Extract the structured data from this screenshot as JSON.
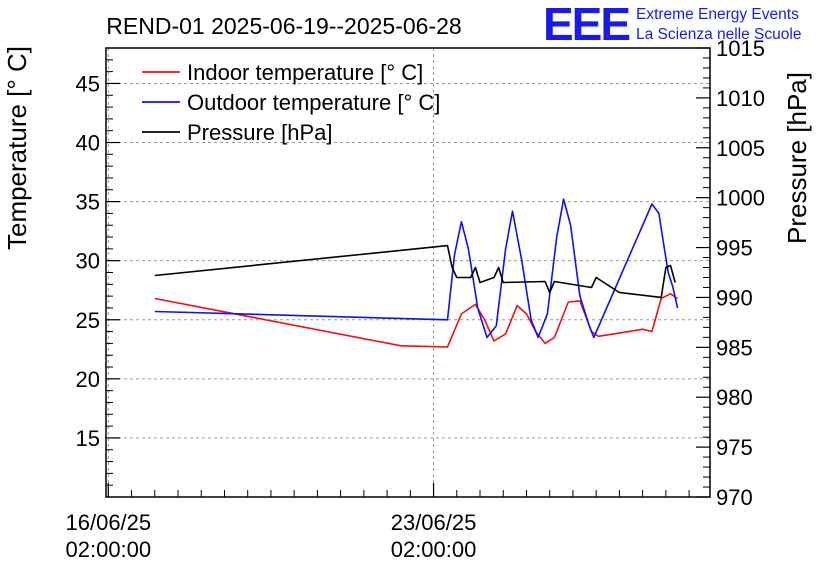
{
  "chart_data": {
    "type": "line",
    "title": "REND-01 2025-06-19--2025-06-28",
    "logo": {
      "text": "EEE",
      "line1": "Extreme Energy Events",
      "line2": "La Scienza nelle Scuole",
      "color": "#1a1aee"
    },
    "xlabel": "",
    "ylabel": "Temperature [° C]",
    "y2label": "Pressure [hPa]",
    "x_ticks": [
      {
        "date": "16/06/25",
        "time": "02:00:00",
        "day": 16.0
      },
      {
        "date": "23/06/25",
        "time": "02:00:00",
        "day": 23.0
      }
    ],
    "xlim_days": [
      15.95,
      28.95
    ],
    "ylim": [
      10,
      48
    ],
    "y_ticks": [
      15,
      20,
      25,
      30,
      35,
      40,
      45
    ],
    "y2lim": [
      970,
      1015
    ],
    "y2_ticks": [
      970,
      975,
      980,
      985,
      990,
      995,
      1000,
      1005,
      1010,
      1015
    ],
    "grid": true,
    "legend_position": "top-left",
    "series": [
      {
        "name": "Indoor temperature [° C]",
        "axis": "left",
        "color": "#ee1111",
        "points": [
          [
            17.0,
            26.8
          ],
          [
            22.3,
            22.8
          ],
          [
            23.3,
            22.7
          ],
          [
            23.6,
            25.5
          ],
          [
            23.9,
            26.3
          ],
          [
            24.1,
            25.0
          ],
          [
            24.3,
            23.2
          ],
          [
            24.55,
            23.8
          ],
          [
            24.8,
            26.2
          ],
          [
            25.0,
            25.5
          ],
          [
            25.2,
            24.0
          ],
          [
            25.4,
            23.0
          ],
          [
            25.6,
            23.5
          ],
          [
            25.9,
            26.5
          ],
          [
            26.15,
            26.6
          ],
          [
            26.4,
            24.0
          ],
          [
            26.55,
            23.6
          ],
          [
            27.2,
            24.0
          ],
          [
            27.5,
            24.2
          ],
          [
            27.7,
            24.0
          ],
          [
            27.9,
            26.8
          ],
          [
            28.1,
            27.2
          ],
          [
            28.25,
            26.8
          ]
        ]
      },
      {
        "name": "Outdoor temperature [° C]",
        "axis": "left",
        "color": "#1111ee",
        "points": [
          [
            17.0,
            25.7
          ],
          [
            23.3,
            25.0
          ],
          [
            23.45,
            30.5
          ],
          [
            23.6,
            33.3
          ],
          [
            23.75,
            31.0
          ],
          [
            23.95,
            26.0
          ],
          [
            24.15,
            23.5
          ],
          [
            24.35,
            24.5
          ],
          [
            24.55,
            31.0
          ],
          [
            24.7,
            34.2
          ],
          [
            24.9,
            30.0
          ],
          [
            25.1,
            25.0
          ],
          [
            25.25,
            23.5
          ],
          [
            25.45,
            25.5
          ],
          [
            25.65,
            32.0
          ],
          [
            25.8,
            35.2
          ],
          [
            25.95,
            33.0
          ],
          [
            26.15,
            27.0
          ],
          [
            26.35,
            24.5
          ],
          [
            26.45,
            23.5
          ],
          [
            27.7,
            34.8
          ],
          [
            27.85,
            34.0
          ],
          [
            27.95,
            31.5
          ],
          [
            28.05,
            29.0
          ],
          [
            28.15,
            27.8
          ],
          [
            28.25,
            26.0
          ]
        ]
      },
      {
        "name": "Pressure [hPa]",
        "axis": "right",
        "color": "#000000",
        "points": [
          [
            17.0,
            992.2
          ],
          [
            23.3,
            995.2
          ],
          [
            23.4,
            993.0
          ],
          [
            23.5,
            992.0
          ],
          [
            23.8,
            992.0
          ],
          [
            23.9,
            993.0
          ],
          [
            24.0,
            991.5
          ],
          [
            24.3,
            992.0
          ],
          [
            24.4,
            993.0
          ],
          [
            24.5,
            991.5
          ],
          [
            25.4,
            991.6
          ],
          [
            25.5,
            990.5
          ],
          [
            25.6,
            991.6
          ],
          [
            26.4,
            991.0
          ],
          [
            26.5,
            992.0
          ],
          [
            27.0,
            990.5
          ],
          [
            27.9,
            990.0
          ],
          [
            28.0,
            993.0
          ],
          [
            28.1,
            993.2
          ],
          [
            28.2,
            991.5
          ]
        ]
      }
    ]
  }
}
